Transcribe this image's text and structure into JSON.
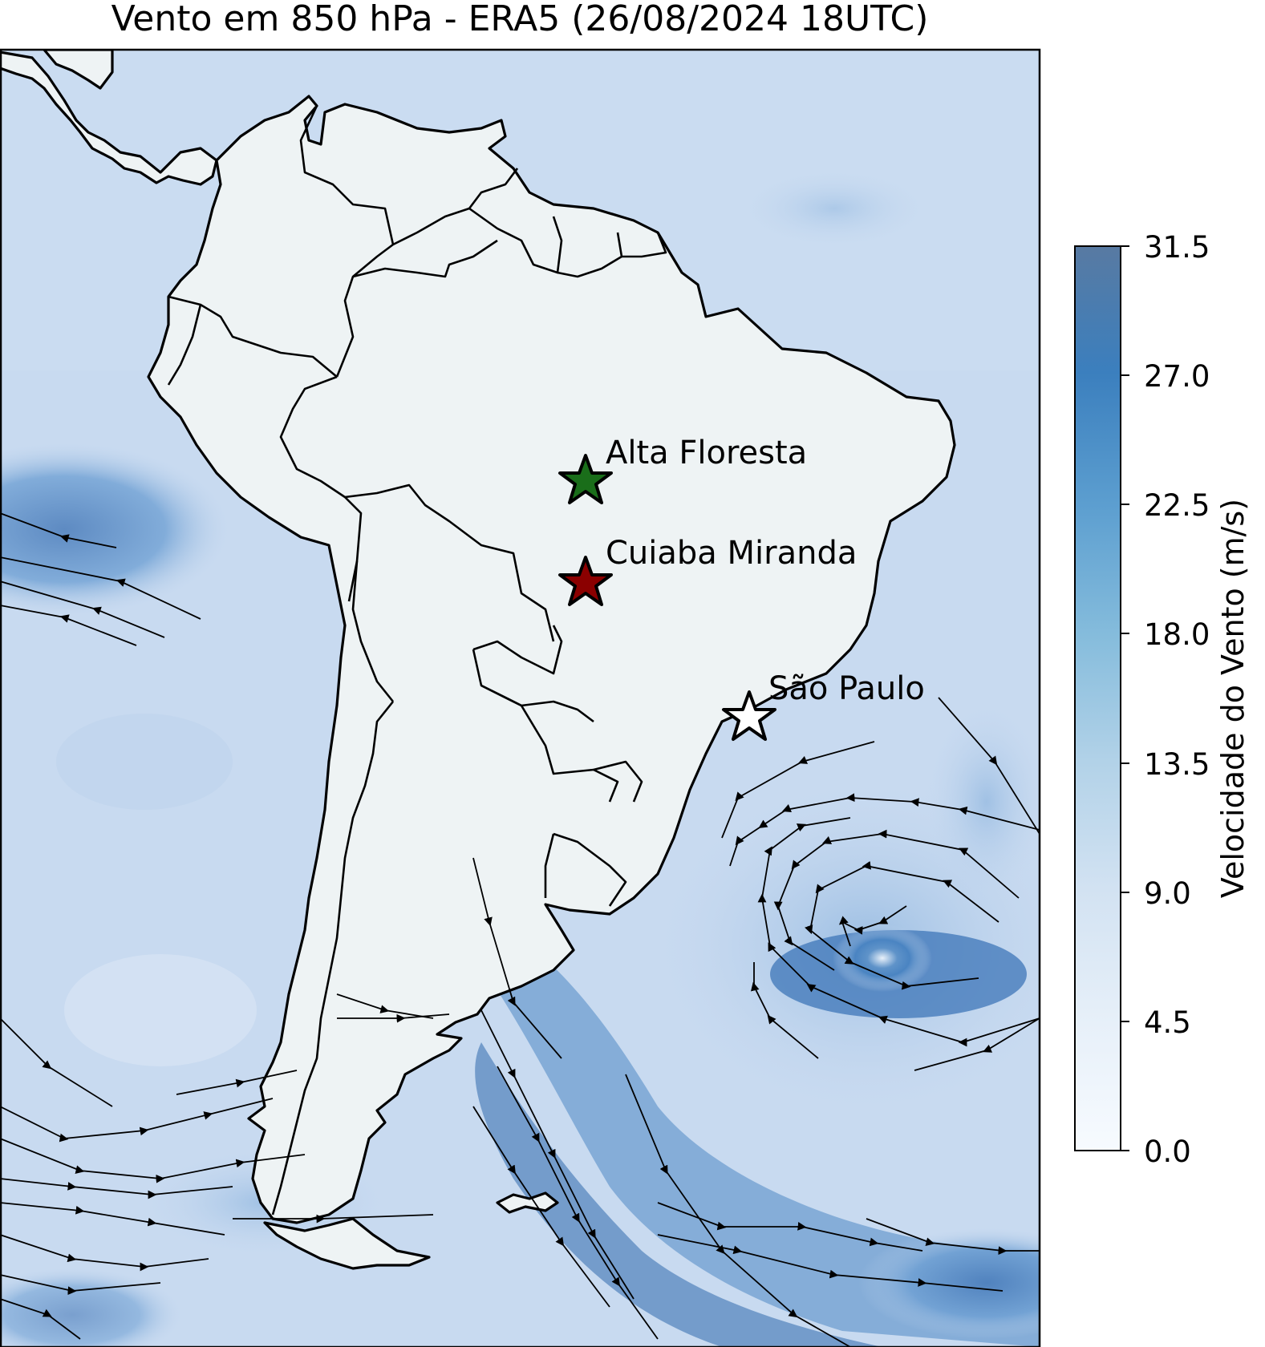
{
  "title": "Vento em 850 hPa - ERA5 (26/08/2024 18UTC)",
  "colorbar": {
    "label": "Velocidade do Vento (m/s)",
    "ticks": [
      "0.0",
      "4.5",
      "9.0",
      "13.5",
      "18.0",
      "22.5",
      "27.0",
      "31.5"
    ],
    "min": 0.0,
    "max": 31.5,
    "colormap": "Blues",
    "colors": [
      "#f7fbff",
      "#deebf7",
      "#c6dbef",
      "#9ecae1",
      "#6baed6",
      "#4292c6",
      "#2171b5",
      "#4e6f9a"
    ]
  },
  "map": {
    "region": "América do Sul",
    "variable": "vento 850 hPa",
    "ocean_color": "#c8daf0",
    "land_color": "#eef3f4",
    "strong_wind_color": "#3f78b8"
  },
  "stations": [
    {
      "name": "Alta Floresta",
      "marker": "star-icon",
      "color": "#1a6e1a"
    },
    {
      "name": "Cuiaba Miranda",
      "marker": "star-icon",
      "color": "#8b0000"
    },
    {
      "name": "São Paulo",
      "marker": "star-icon",
      "color": "#ffffff"
    }
  ]
}
